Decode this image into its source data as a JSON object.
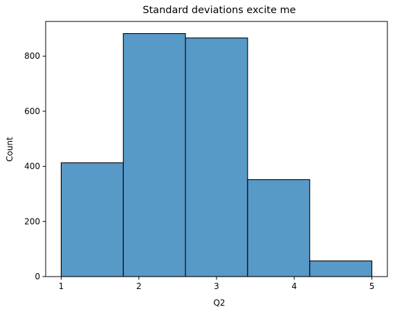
{
  "chart_data": {
    "type": "bar",
    "title": "Standard deviations excite me",
    "xlabel": "Q2",
    "ylabel": "Count",
    "bins": [
      {
        "start": 1.0,
        "end": 1.8,
        "value": 413
      },
      {
        "start": 1.8,
        "end": 2.6,
        "value": 882
      },
      {
        "start": 2.6,
        "end": 3.4,
        "value": 866
      },
      {
        "start": 3.4,
        "end": 4.2,
        "value": 352
      },
      {
        "start": 4.2,
        "end": 5.0,
        "value": 57
      }
    ],
    "xlim": [
      0.8,
      5.2
    ],
    "ylim": [
      0,
      926
    ],
    "xticks": [
      1,
      2,
      3,
      4,
      5
    ],
    "yticks": [
      0,
      200,
      400,
      600,
      800
    ],
    "bar_color": "#5799C7",
    "edge_color": "#000000",
    "grid": false
  }
}
